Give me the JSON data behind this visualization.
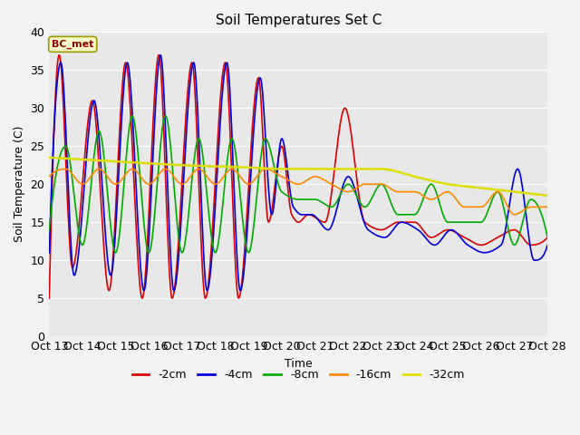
{
  "title": "Soil Temperatures Set C",
  "xlabel": "Time",
  "ylabel": "Soil Temperature (C)",
  "ylim": [
    0,
    40
  ],
  "xlim": [
    0,
    15
  ],
  "annotation": "BC_met",
  "series_colors": {
    "-2cm": "#dd0000",
    "-4cm": "#0000dd",
    "-8cm": "#00aa00",
    "-16cm": "#ff8800",
    "-32cm": "#dddd00"
  },
  "x_tick_labels": [
    "Oct 13",
    "Oct 14",
    "Oct 15",
    "Oct 16",
    "Oct 17",
    "Oct 18",
    "Oct 19",
    "Oct 20",
    "Oct 21",
    "Oct 22",
    "Oct 23",
    "Oct 24",
    "Oct 25",
    "Oct 26",
    "Oct 27",
    "Oct 28"
  ],
  "bg_color": "#e8e8e8",
  "fig_bg_color": "#f2f2f2",
  "grid_color": "#ffffff",
  "legend_entries": [
    "-2cm",
    "-4cm",
    "-8cm",
    "-16cm",
    "-32cm"
  ],
  "n_days": 15,
  "n_per_day": 48
}
